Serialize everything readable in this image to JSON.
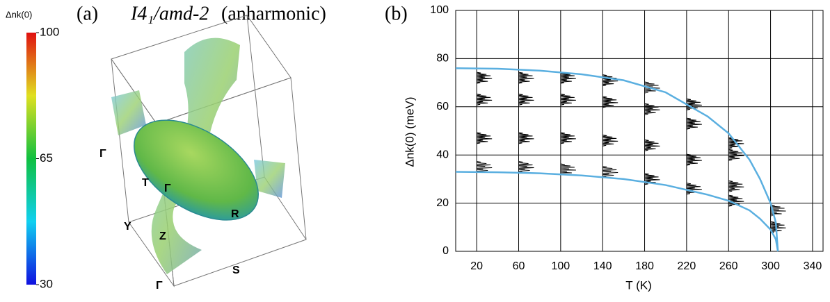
{
  "panel_a": {
    "label": "(a)",
    "title": "I4₁/amd-2",
    "title_suffix": "(anharmonic)",
    "colorbar": {
      "label": "Δnk(0)",
      "lim": [
        30,
        100
      ],
      "ticks": [
        100,
        65,
        30
      ]
    },
    "points": [
      "Γ",
      "T",
      "Γ",
      "Y",
      "Z",
      "R",
      "S",
      "Γ"
    ]
  },
  "chart_data": {
    "type": "line",
    "panel_label": "(b)",
    "xlabel": "T (K)",
    "ylabel": "Δnk(0)  (meV)",
    "xlim": [
      0,
      350
    ],
    "ylim": [
      0,
      100
    ],
    "xticks": [
      20,
      60,
      100,
      140,
      180,
      220,
      260,
      300,
      340
    ],
    "yticks": [
      0,
      20,
      40,
      60,
      80,
      100
    ],
    "grid": true,
    "x": [
      0,
      40,
      80,
      120,
      160,
      200,
      240,
      260,
      280,
      290,
      300,
      305,
      307
    ],
    "series": [
      {
        "color": "#5aafe0",
        "values": [
          76,
          75.8,
          75,
          73.5,
          71,
          66,
          56,
          49,
          38,
          30,
          20,
          12,
          0
        ]
      },
      {
        "color": "#5aafe0",
        "values": [
          33,
          32.8,
          32.4,
          31.5,
          30,
          27.5,
          23.5,
          21,
          17,
          13.5,
          9,
          5,
          0
        ]
      }
    ],
    "distributions": [
      {
        "T": 20,
        "peaks": [
          72,
          63,
          47,
          35
        ]
      },
      {
        "T": 60,
        "peaks": [
          72,
          63,
          47,
          35
        ]
      },
      {
        "T": 100,
        "peaks": [
          72,
          63,
          47,
          34
        ]
      },
      {
        "T": 140,
        "peaks": [
          71,
          62,
          46,
          33
        ]
      },
      {
        "T": 180,
        "peaks": [
          68,
          59,
          44,
          30
        ]
      },
      {
        "T": 220,
        "peaks": [
          61,
          53,
          38,
          26
        ]
      },
      {
        "T": 260,
        "peaks": [
          45,
          40,
          27,
          21
        ]
      },
      {
        "T": 300,
        "peaks": [
          17,
          10
        ]
      }
    ]
  }
}
